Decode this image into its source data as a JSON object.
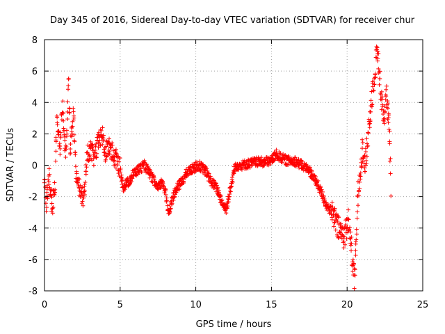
{
  "chart_data": {
    "type": "scatter",
    "title": "Day 345 of 2016, Sidereal Day-to-day VTEC variation (SDTVAR) for receiver chur",
    "xlabel": "GPS time / hours",
    "ylabel": "SDTVAR / TECUs",
    "xlim": [
      0,
      25
    ],
    "ylim": [
      -8,
      8
    ],
    "xticks": [
      0,
      5,
      10,
      15,
      20,
      25
    ],
    "yticks": [
      -8,
      -6,
      -4,
      -2,
      0,
      2,
      4,
      6,
      8
    ],
    "xtick_labels": [
      "0",
      "5",
      "10",
      "15",
      "20",
      "25"
    ],
    "ytick_labels": [
      "-8",
      "-6",
      "-4",
      "-2",
      "0",
      "2",
      "4",
      "6",
      "8"
    ],
    "grid": true,
    "marker": "+",
    "marker_color": "#ff0000",
    "series": [
      {
        "name": "SDTVAR",
        "profile": [
          [
            0.0,
            -0.8
          ],
          [
            0.1,
            -2.6
          ],
          [
            0.3,
            -0.6
          ],
          [
            0.5,
            -2.8
          ],
          [
            0.7,
            -1.5
          ],
          [
            0.8,
            3.5
          ],
          [
            1.0,
            0.8
          ],
          [
            1.2,
            4.0
          ],
          [
            1.4,
            0.5
          ],
          [
            1.6,
            5.6
          ],
          [
            1.7,
            1.0
          ],
          [
            1.9,
            3.5
          ],
          [
            2.1,
            -0.8
          ],
          [
            2.4,
            -1.5
          ],
          [
            2.6,
            -2.3
          ],
          [
            2.8,
            0.5
          ],
          [
            3.0,
            1.0
          ],
          [
            3.3,
            0.5
          ],
          [
            3.6,
            1.6
          ],
          [
            3.8,
            2.0
          ],
          [
            4.0,
            0.8
          ],
          [
            4.3,
            1.2
          ],
          [
            4.6,
            0.5
          ],
          [
            4.8,
            0.3
          ],
          [
            5.0,
            -0.2
          ],
          [
            5.2,
            -1.4
          ],
          [
            5.6,
            -1.0
          ],
          [
            5.9,
            -0.5
          ],
          [
            6.2,
            -0.3
          ],
          [
            6.6,
            0.0
          ],
          [
            7.0,
            -0.6
          ],
          [
            7.5,
            -1.5
          ],
          [
            7.8,
            -1.0
          ],
          [
            8.0,
            -1.8
          ],
          [
            8.2,
            -3.0
          ],
          [
            8.5,
            -2.0
          ],
          [
            8.8,
            -1.4
          ],
          [
            9.1,
            -1.0
          ],
          [
            9.4,
            -0.5
          ],
          [
            9.8,
            -0.2
          ],
          [
            10.2,
            0.0
          ],
          [
            10.6,
            -0.3
          ],
          [
            11.0,
            -1.0
          ],
          [
            11.4,
            -1.5
          ],
          [
            11.8,
            -2.5
          ],
          [
            12.0,
            -2.8
          ],
          [
            12.3,
            -1.5
          ],
          [
            12.6,
            0.0
          ],
          [
            13.0,
            0.0
          ],
          [
            13.5,
            0.1
          ],
          [
            14.0,
            0.2
          ],
          [
            14.5,
            0.2
          ],
          [
            15.0,
            0.3
          ],
          [
            15.3,
            0.7
          ],
          [
            15.6,
            0.5
          ],
          [
            16.0,
            0.3
          ],
          [
            16.5,
            0.3
          ],
          [
            17.0,
            0.0
          ],
          [
            17.5,
            -0.3
          ],
          [
            17.8,
            -0.8
          ],
          [
            18.2,
            -1.5
          ],
          [
            18.6,
            -2.5
          ],
          [
            19.0,
            -3.0
          ],
          [
            19.4,
            -4.0
          ],
          [
            19.8,
            -4.5
          ],
          [
            20.1,
            -3.5
          ],
          [
            20.3,
            -5.5
          ],
          [
            20.5,
            -7.5
          ],
          [
            20.7,
            -2.0
          ],
          [
            21.0,
            1.0
          ],
          [
            21.2,
            0.0
          ],
          [
            21.5,
            3.0
          ],
          [
            21.7,
            5.0
          ],
          [
            21.9,
            6.5
          ],
          [
            22.0,
            7.5
          ],
          [
            22.2,
            5.0
          ],
          [
            22.4,
            3.0
          ],
          [
            22.6,
            4.5
          ],
          [
            22.8,
            2.0
          ],
          [
            22.9,
            -1.5
          ]
        ]
      }
    ]
  }
}
